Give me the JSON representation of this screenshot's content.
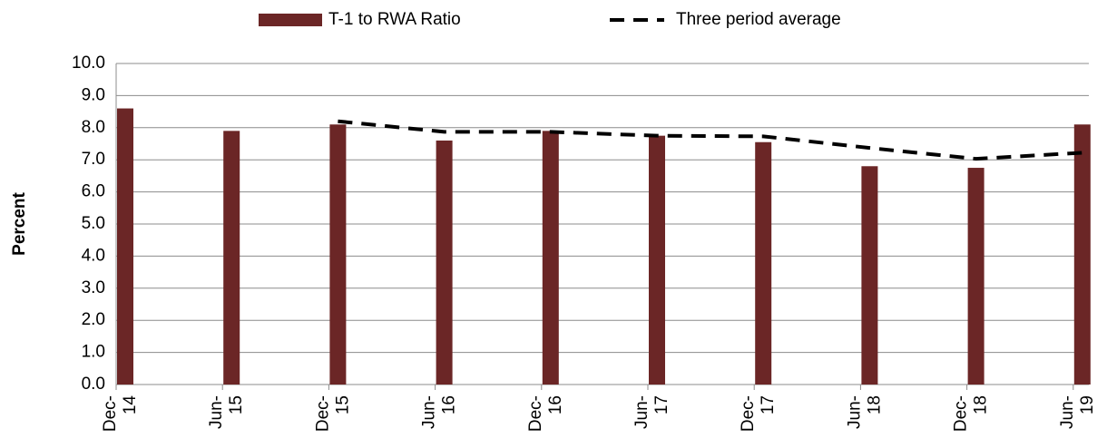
{
  "chart_data": {
    "type": "bar",
    "y_label": "Percent",
    "categories": [
      "Dec-14",
      "Jun-15",
      "Dec-15",
      "Jun-16",
      "Dec-16",
      "Jun-17",
      "Dec-17",
      "Jun-18",
      "Dec-18",
      "Jun-19"
    ],
    "series": [
      {
        "name": "T-1 to RWA Ratio",
        "type": "bar",
        "color": "#6b2626",
        "values": [
          8.6,
          7.9,
          8.1,
          7.6,
          7.9,
          7.75,
          7.55,
          6.8,
          6.75,
          8.1
        ]
      },
      {
        "name": "Three period average",
        "type": "line",
        "color": "#000000",
        "dashed": true,
        "values": [
          null,
          null,
          8.2,
          7.87,
          7.87,
          7.75,
          7.73,
          7.37,
          7.03,
          7.22
        ]
      }
    ],
    "ylim": [
      0,
      10
    ],
    "yticks": [
      {
        "value": 0,
        "label": "0.0"
      },
      {
        "value": 1,
        "label": "1.0"
      },
      {
        "value": 2,
        "label": "2.0"
      },
      {
        "value": 3,
        "label": "3.0"
      },
      {
        "value": 4,
        "label": "4.0"
      },
      {
        "value": 5,
        "label": "5.0"
      },
      {
        "value": 6,
        "label": "6.0"
      },
      {
        "value": 7,
        "label": "7.0"
      },
      {
        "value": 8,
        "label": "8.0"
      },
      {
        "value": 9,
        "label": "9.0"
      },
      {
        "value": 10,
        "label": "10.0"
      }
    ],
    "grid": true,
    "legend": "top"
  }
}
